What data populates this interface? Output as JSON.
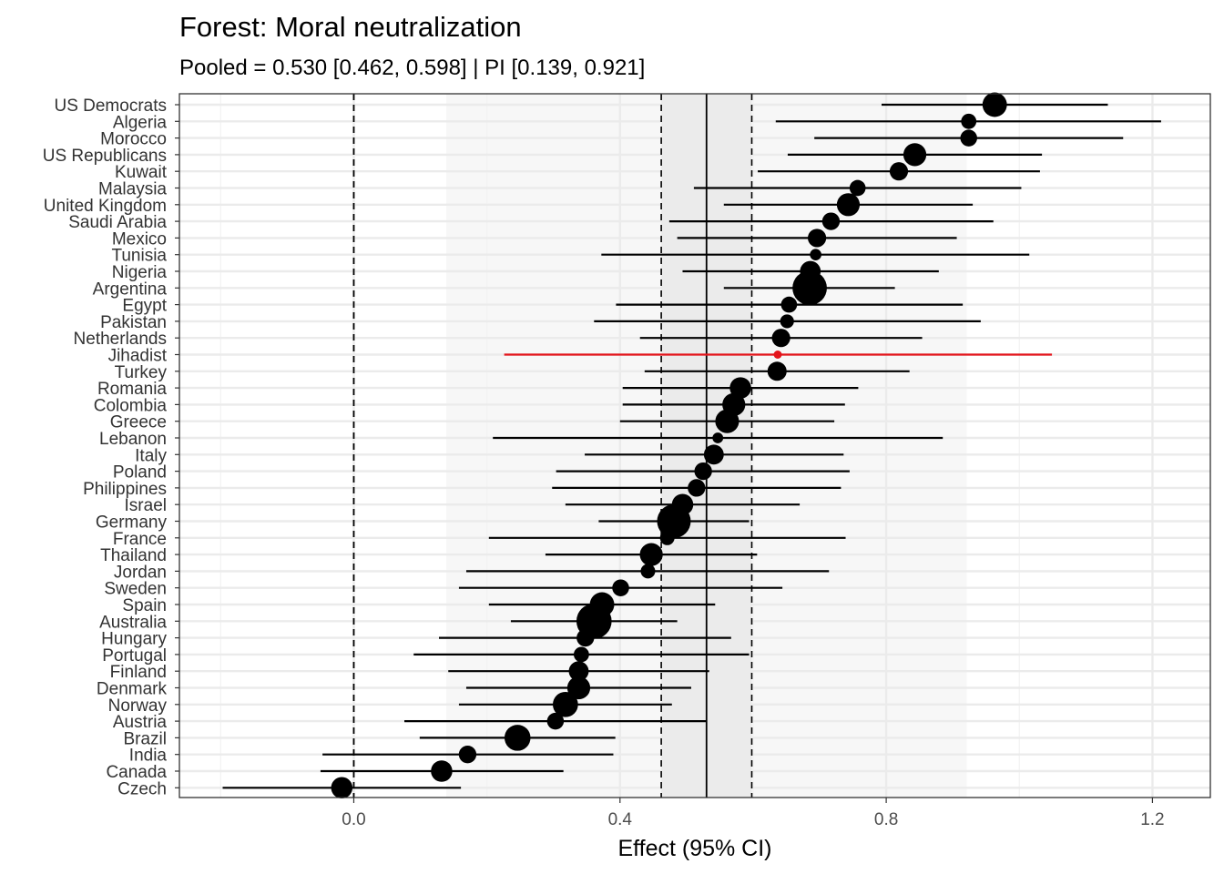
{
  "chart_data": {
    "type": "forest",
    "title": "Forest: Moral neutralization",
    "subtitle": "Pooled = 0.530 [0.462, 0.598] | PI [0.139, 0.921]",
    "xlabel": "Effect (95% CI)",
    "ylabel": "",
    "xlim": [
      -0.262,
      1.287
    ],
    "x_ticks": [
      0.0,
      0.4,
      0.8,
      1.2
    ],
    "x_tick_labels": [
      "0.0",
      "0.4",
      "0.8",
      "1.2"
    ],
    "grid": true,
    "pooled": {
      "estimate": 0.53,
      "ci_low": 0.462,
      "ci_high": 0.598
    },
    "prediction_interval": {
      "low": 0.139,
      "high": 0.921
    },
    "null_line": 0.0,
    "highlight_color": "#e4141b",
    "point_color": "#000000",
    "studies": [
      {
        "label": "US Democrats",
        "est": 0.963,
        "lo": 0.793,
        "hi": 1.133,
        "weight": 3.2
      },
      {
        "label": "Algeria",
        "est": 0.924,
        "lo": 0.634,
        "hi": 1.213,
        "weight": 2.0
      },
      {
        "label": "Morocco",
        "est": 0.924,
        "lo": 0.692,
        "hi": 1.156,
        "weight": 2.2
      },
      {
        "label": "US Republicans",
        "est": 0.843,
        "lo": 0.652,
        "hi": 1.034,
        "weight": 3.0
      },
      {
        "label": "Kuwait",
        "est": 0.819,
        "lo": 0.607,
        "hi": 1.031,
        "weight": 2.4
      },
      {
        "label": "Malaysia",
        "est": 0.757,
        "lo": 0.511,
        "hi": 1.003,
        "weight": 2.1
      },
      {
        "label": "United Kingdom",
        "est": 0.743,
        "lo": 0.556,
        "hi": 0.93,
        "weight": 3.0
      },
      {
        "label": "Saudi Arabia",
        "est": 0.717,
        "lo": 0.474,
        "hi": 0.961,
        "weight": 2.3
      },
      {
        "label": "Mexico",
        "est": 0.696,
        "lo": 0.486,
        "hi": 0.906,
        "weight": 2.4
      },
      {
        "label": "Tunisia",
        "est": 0.694,
        "lo": 0.372,
        "hi": 1.015,
        "weight": 1.5
      },
      {
        "label": "Nigeria",
        "est": 0.686,
        "lo": 0.494,
        "hi": 0.879,
        "weight": 2.7
      },
      {
        "label": "Argentina",
        "est": 0.685,
        "lo": 0.556,
        "hi": 0.813,
        "weight": 4.5
      },
      {
        "label": "Egypt",
        "est": 0.654,
        "lo": 0.394,
        "hi": 0.915,
        "weight": 2.1
      },
      {
        "label": "Pakistan",
        "est": 0.651,
        "lo": 0.361,
        "hi": 0.942,
        "weight": 1.8
      },
      {
        "label": "Netherlands",
        "est": 0.642,
        "lo": 0.43,
        "hi": 0.854,
        "weight": 2.4
      },
      {
        "label": "Jihadist",
        "est": 0.637,
        "lo": 0.226,
        "hi": 1.049,
        "weight": 1.0,
        "highlight": true
      },
      {
        "label": "Turkey",
        "est": 0.636,
        "lo": 0.437,
        "hi": 0.835,
        "weight": 2.5
      },
      {
        "label": "Romania",
        "est": 0.581,
        "lo": 0.404,
        "hi": 0.758,
        "weight": 2.8
      },
      {
        "label": "Colombia",
        "est": 0.571,
        "lo": 0.404,
        "hi": 0.738,
        "weight": 3.0
      },
      {
        "label": "Greece",
        "est": 0.561,
        "lo": 0.4,
        "hi": 0.722,
        "weight": 3.1
      },
      {
        "label": "Lebanon",
        "est": 0.547,
        "lo": 0.209,
        "hi": 0.885,
        "weight": 1.4
      },
      {
        "label": "Italy",
        "est": 0.541,
        "lo": 0.347,
        "hi": 0.736,
        "weight": 2.6
      },
      {
        "label": "Poland",
        "est": 0.525,
        "lo": 0.304,
        "hi": 0.745,
        "weight": 2.3
      },
      {
        "label": "Philippines",
        "est": 0.515,
        "lo": 0.298,
        "hi": 0.732,
        "weight": 2.3
      },
      {
        "label": "Israel",
        "est": 0.494,
        "lo": 0.318,
        "hi": 0.67,
        "weight": 2.8
      },
      {
        "label": "Germany",
        "est": 0.481,
        "lo": 0.368,
        "hi": 0.594,
        "weight": 4.4
      },
      {
        "label": "France",
        "est": 0.471,
        "lo": 0.203,
        "hi": 0.739,
        "weight": 1.9
      },
      {
        "label": "Thailand",
        "est": 0.447,
        "lo": 0.288,
        "hi": 0.606,
        "weight": 3.0
      },
      {
        "label": "Jordan",
        "est": 0.442,
        "lo": 0.169,
        "hi": 0.714,
        "weight": 1.9
      },
      {
        "label": "Sweden",
        "est": 0.401,
        "lo": 0.158,
        "hi": 0.644,
        "weight": 2.2
      },
      {
        "label": "Spain",
        "est": 0.373,
        "lo": 0.203,
        "hi": 0.543,
        "weight": 3.2
      },
      {
        "label": "Australia",
        "est": 0.361,
        "lo": 0.236,
        "hi": 0.486,
        "weight": 4.6
      },
      {
        "label": "Hungary",
        "est": 0.348,
        "lo": 0.128,
        "hi": 0.567,
        "weight": 2.3
      },
      {
        "label": "Portugal",
        "est": 0.342,
        "lo": 0.09,
        "hi": 0.594,
        "weight": 2.0
      },
      {
        "label": "Finland",
        "est": 0.338,
        "lo": 0.142,
        "hi": 0.534,
        "weight": 2.6
      },
      {
        "label": "Denmark",
        "est": 0.338,
        "lo": 0.169,
        "hi": 0.507,
        "weight": 3.0
      },
      {
        "label": "Norway",
        "est": 0.318,
        "lo": 0.158,
        "hi": 0.478,
        "weight": 3.3
      },
      {
        "label": "Austria",
        "est": 0.303,
        "lo": 0.076,
        "hi": 0.53,
        "weight": 2.2
      },
      {
        "label": "Brazil",
        "est": 0.246,
        "lo": 0.099,
        "hi": 0.393,
        "weight": 3.4
      },
      {
        "label": "India",
        "est": 0.171,
        "lo": -0.047,
        "hi": 0.39,
        "weight": 2.3
      },
      {
        "label": "Canada",
        "est": 0.132,
        "lo": -0.05,
        "hi": 0.315,
        "weight": 2.8
      },
      {
        "label": "Czech",
        "est": -0.018,
        "lo": -0.197,
        "hi": 0.161,
        "weight": 2.8
      }
    ]
  }
}
